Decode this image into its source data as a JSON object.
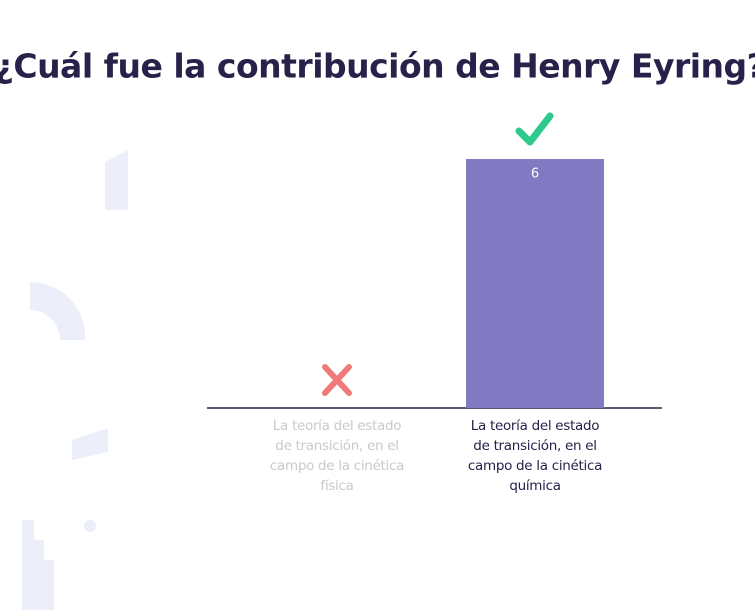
{
  "chart_data": {
    "type": "bar",
    "title": "¿Cuál fue la contribución de Henry Eyring?",
    "categories": [
      "La teoría del estado de transición, en el campo de la cinética física",
      "La teoría del estado de transición, en el campo de la cinética química"
    ],
    "values": [
      0,
      6
    ],
    "correct": [
      false,
      true
    ],
    "color": "#8179c2",
    "ylim": [
      0,
      6
    ]
  }
}
